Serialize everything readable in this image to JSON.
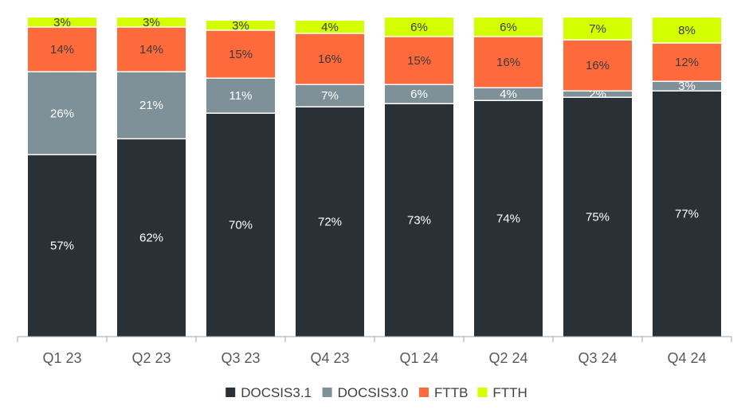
{
  "chart_data": {
    "type": "bar",
    "stacked": true,
    "categories": [
      "Q1 23",
      "Q2 23",
      "Q3 23",
      "Q4 23",
      "Q1 24",
      "Q2 24",
      "Q3 24",
      "Q4 24"
    ],
    "series": [
      {
        "name": "DOCSIS3.1",
        "color": "#293136",
        "label_color": "#ffffff",
        "values": [
          57,
          62,
          70,
          72,
          73,
          74,
          75,
          77
        ],
        "labels": [
          "57%",
          "62%",
          "70%",
          "72%",
          "73%",
          "74%",
          "75%",
          "77%"
        ]
      },
      {
        "name": "DOCSIS3.0",
        "color": "#7f9198",
        "label_color": "#ffffff",
        "values": [
          26,
          21,
          11,
          7,
          6,
          4,
          2,
          3
        ],
        "labels": [
          "26%",
          "21%",
          "11%",
          "7%",
          "6%",
          "4%",
          "2%",
          "3%"
        ]
      },
      {
        "name": "FTTB",
        "color": "#ff6a3d",
        "label_color": "#3a3a3a",
        "values": [
          14,
          14,
          15,
          16,
          15,
          16,
          16,
          12
        ],
        "labels": [
          "14%",
          "14%",
          "15%",
          "16%",
          "15%",
          "16%",
          "16%",
          "12%"
        ]
      },
      {
        "name": "FTTH",
        "color": "#d4ff00",
        "label_color": "#3a3a3a",
        "values": [
          3,
          3,
          3,
          4,
          6,
          6,
          7,
          8
        ],
        "labels": [
          "3%",
          "3%",
          "3%",
          "4%",
          "6%",
          "6%",
          "7%",
          "8%"
        ]
      }
    ],
    "ylim": [
      0,
      100
    ],
    "grid": false,
    "legend_position": "bottom"
  }
}
